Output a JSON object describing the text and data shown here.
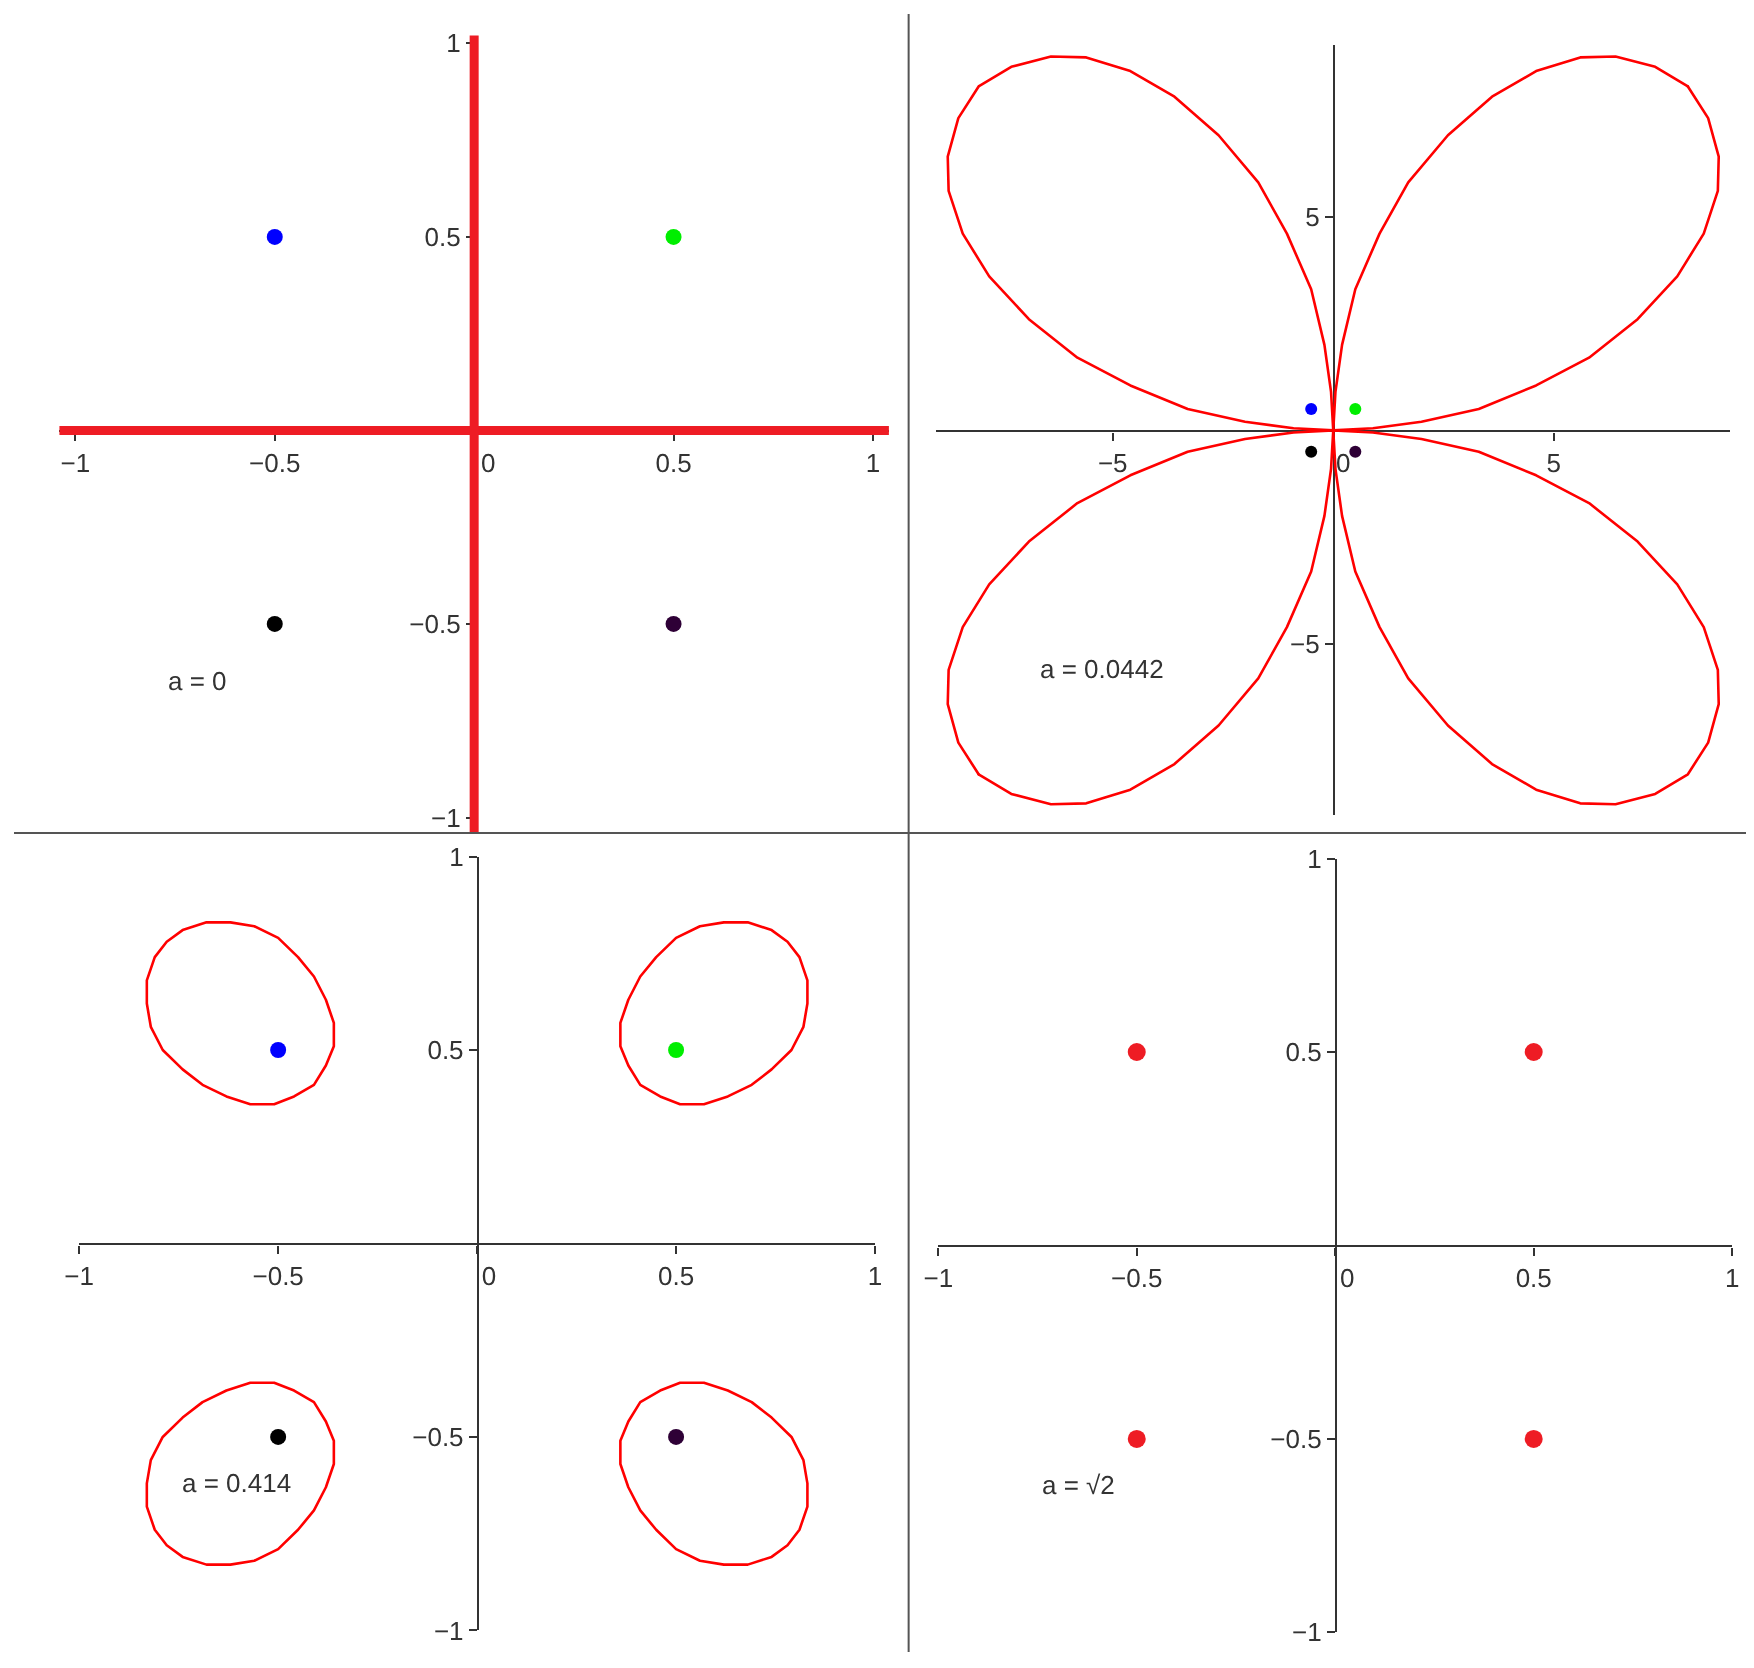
{
  "chart_data": [
    {
      "type": "line",
      "annotations": [
        "a = 0"
      ],
      "xlim": [
        -1.04,
        1.04
      ],
      "xticks": [
        -1,
        -0.5,
        0,
        0.5,
        1
      ],
      "ylim": [
        -1.04,
        1.02
      ],
      "yticks": [
        -1,
        -0.5,
        0.5,
        1
      ],
      "series": [
        {
          "color": "#ee1c24",
          "x": [
            -1.04,
            1.04
          ],
          "values": [
            0,
            0
          ]
        },
        {
          "color": "#ee1c24",
          "x": [
            0,
            0
          ],
          "values": [
            1.02,
            -1.04
          ]
        },
        {
          "type": "scatter",
          "marker": "circle",
          "colors": [
            "#0000ff",
            "#00ee00",
            "#000000",
            "#2e0036"
          ],
          "x": [
            -0.5,
            0.5,
            -0.5,
            0.5
          ],
          "values": [
            0.5,
            0.5,
            -0.5,
            -0.5
          ]
        }
      ]
    },
    {
      "type": "line",
      "annotations": [
        "a = 0.0442"
      ],
      "xlim": [
        -9,
        9
      ],
      "xticks": [
        -5,
        0,
        5
      ],
      "ylim": [
        -9,
        9
      ],
      "yticks": [
        -5,
        5
      ],
      "series": [
        {
          "color": "#ff0000",
          "x": [
            8.04,
            7.3,
            6.4,
            5.6,
            4.6,
            3.6,
            2.6,
            1.7,
            1.05,
            0.5,
            0.2,
            0.05,
            0,
            -0.05,
            -0.2,
            -0.5,
            -1.05,
            -1.7,
            -2.6,
            -3.6,
            -4.6,
            -5.6,
            -6.4,
            -7.3,
            -8.04,
            -8.5,
            -8.74,
            -8.72,
            -8.4,
            -7.8,
            -6.9,
            -5.8,
            -4.6,
            -3.3,
            -2.0,
            -0.9,
            0,
            -0.9,
            -2.0,
            -3.3,
            -4.6,
            -5.8,
            -6.9,
            -7.8,
            -8.4,
            -8.72,
            -8.74,
            -8.5,
            -8.04
          ],
          "values": [
            8.04,
            8.5,
            8.74,
            8.72,
            8.4,
            7.8,
            6.9,
            5.8,
            4.6,
            3.3,
            2.0,
            0.9,
            0,
            0.9,
            2.0,
            3.3,
            4.6,
            5.8,
            6.9,
            7.8,
            8.4,
            8.72,
            8.74,
            8.5,
            8.04,
            7.3,
            6.4,
            5.6,
            4.6,
            3.6,
            2.6,
            1.7,
            1.05,
            0.5,
            0.2,
            0.05,
            0,
            -0.05,
            -0.2,
            -0.5,
            -1.05,
            -1.7,
            -2.6,
            -3.6,
            -4.6,
            -5.6,
            -6.4,
            -7.3,
            -8.04
          ]
        },
        {
          "color": "#ff0000",
          "x": [
            -8.04,
            -7.3,
            -6.4,
            -5.6,
            -4.6,
            -3.6,
            -2.6,
            -1.7,
            -1.05,
            -0.5,
            -0.2,
            -0.05,
            0,
            0.05,
            0.2,
            0.5,
            1.05,
            1.7,
            2.6,
            3.6,
            4.6,
            5.6,
            6.4,
            7.3,
            8.04,
            8.5,
            8.74,
            8.72,
            8.4,
            7.8,
            6.9,
            5.8,
            4.6,
            3.3,
            2.0,
            0.9,
            0,
            0.9,
            2.0,
            3.3,
            4.6,
            5.8,
            6.9,
            7.8,
            8.4,
            8.72,
            8.74,
            8.5,
            8.04
          ],
          "values": [
            -8.04,
            -8.5,
            -8.74,
            -8.72,
            -8.4,
            -7.8,
            -6.9,
            -5.8,
            -4.6,
            -3.3,
            -2.0,
            -0.9,
            0,
            -0.9,
            -2.0,
            -3.3,
            -4.6,
            -5.8,
            -6.9,
            -7.8,
            -8.4,
            -8.72,
            -8.74,
            -8.5,
            -8.04,
            -7.3,
            -6.4,
            -5.6,
            -4.6,
            -3.6,
            -2.6,
            -1.7,
            -1.05,
            -0.5,
            -0.2,
            -0.05,
            0,
            0.05,
            0.2,
            0.5,
            1.05,
            1.7,
            2.6,
            3.6,
            4.6,
            5.6,
            6.4,
            7.3,
            8.04
          ]
        },
        {
          "type": "scatter",
          "marker": "circle",
          "colors": [
            "#0000ff",
            "#00ee00",
            "#000000",
            "#2e0036"
          ],
          "x": [
            -0.5,
            0.5,
            -0.5,
            0.5
          ],
          "values": [
            0.5,
            0.5,
            -0.5,
            -0.5
          ]
        }
      ]
    },
    {
      "type": "line",
      "annotations": [
        "a = 0.414"
      ],
      "xlim": [
        -1,
        1
      ],
      "xticks": [
        -1,
        -0.5,
        0,
        0.5,
        1
      ],
      "ylim": [
        -1,
        1
      ],
      "yticks": [
        -1,
        -0.5,
        0.5,
        1
      ],
      "series": [
        {
          "color": "#ff0000",
          "x": [
            -0.78,
            -0.74,
            -0.68,
            -0.62,
            -0.56,
            -0.5,
            -0.45,
            -0.41,
            -0.38,
            -0.36,
            -0.36,
            -0.38,
            -0.41,
            -0.46,
            -0.51,
            -0.57,
            -0.63,
            -0.69,
            -0.74,
            -0.79,
            -0.82,
            -0.83,
            -0.83,
            -0.81,
            -0.78,
            -0.74,
            -0.68
          ],
          "values": [
            0.78,
            0.81,
            0.83,
            0.83,
            0.82,
            0.79,
            0.74,
            0.69,
            0.63,
            0.57,
            0.51,
            0.46,
            0.41,
            0.38,
            0.36,
            0.36,
            0.38,
            0.41,
            0.45,
            0.5,
            0.56,
            0.62,
            0.68,
            0.74,
            0.78,
            0.81,
            0.83
          ]
        },
        {
          "color": "#ff0000",
          "x": [
            0.78,
            0.74,
            0.68,
            0.62,
            0.56,
            0.5,
            0.45,
            0.41,
            0.38,
            0.36,
            0.36,
            0.38,
            0.41,
            0.46,
            0.51,
            0.57,
            0.63,
            0.69,
            0.74,
            0.79,
            0.82,
            0.83,
            0.83,
            0.81,
            0.78,
            0.74,
            0.68
          ],
          "values": [
            0.78,
            0.81,
            0.83,
            0.83,
            0.82,
            0.79,
            0.74,
            0.69,
            0.63,
            0.57,
            0.51,
            0.46,
            0.41,
            0.38,
            0.36,
            0.36,
            0.38,
            0.41,
            0.45,
            0.5,
            0.56,
            0.62,
            0.68,
            0.74,
            0.78,
            0.81,
            0.83
          ]
        },
        {
          "color": "#ff0000",
          "x": [
            -0.78,
            -0.74,
            -0.68,
            -0.62,
            -0.56,
            -0.5,
            -0.45,
            -0.41,
            -0.38,
            -0.36,
            -0.36,
            -0.38,
            -0.41,
            -0.46,
            -0.51,
            -0.57,
            -0.63,
            -0.69,
            -0.74,
            -0.79,
            -0.82,
            -0.83,
            -0.83,
            -0.81,
            -0.78,
            -0.74,
            -0.68
          ],
          "values": [
            -0.78,
            -0.81,
            -0.83,
            -0.83,
            -0.82,
            -0.79,
            -0.74,
            -0.69,
            -0.63,
            -0.57,
            -0.51,
            -0.46,
            -0.41,
            -0.38,
            -0.36,
            -0.36,
            -0.38,
            -0.41,
            -0.45,
            -0.5,
            -0.56,
            -0.62,
            -0.68,
            -0.74,
            -0.78,
            -0.81,
            -0.83
          ]
        },
        {
          "color": "#ff0000",
          "x": [
            0.78,
            0.74,
            0.68,
            0.62,
            0.56,
            0.5,
            0.45,
            0.41,
            0.38,
            0.36,
            0.36,
            0.38,
            0.41,
            0.46,
            0.51,
            0.57,
            0.63,
            0.69,
            0.74,
            0.79,
            0.82,
            0.83,
            0.83,
            0.81,
            0.78,
            0.74,
            0.68
          ],
          "values": [
            -0.78,
            -0.81,
            -0.83,
            -0.83,
            -0.82,
            -0.79,
            -0.74,
            -0.69,
            -0.63,
            -0.57,
            -0.51,
            -0.46,
            -0.41,
            -0.38,
            -0.36,
            -0.36,
            -0.38,
            -0.41,
            -0.45,
            -0.5,
            -0.56,
            -0.62,
            -0.68,
            -0.74,
            -0.78,
            -0.81,
            -0.83
          ]
        },
        {
          "type": "scatter",
          "marker": "circle",
          "colors": [
            "#0000ff",
            "#00ee00",
            "#000000",
            "#2e0036"
          ],
          "x": [
            -0.5,
            0.5,
            -0.5,
            0.5
          ],
          "values": [
            0.5,
            0.5,
            -0.5,
            -0.5
          ]
        }
      ]
    },
    {
      "type": "scatter",
      "annotations": [
        "a = √2"
      ],
      "xlim": [
        -1,
        1
      ],
      "xticks": [
        -1,
        -0.5,
        0,
        0.5,
        1
      ],
      "ylim": [
        -1,
        1
      ],
      "yticks": [
        -1,
        -0.5,
        0.5,
        1
      ],
      "series": [
        {
          "marker": "circle",
          "color": "#ee1c24",
          "x": [
            -0.5,
            0.5,
            -0.5,
            0.5
          ],
          "values": [
            0.5,
            0.5,
            -0.5,
            -0.5
          ]
        }
      ]
    }
  ]
}
